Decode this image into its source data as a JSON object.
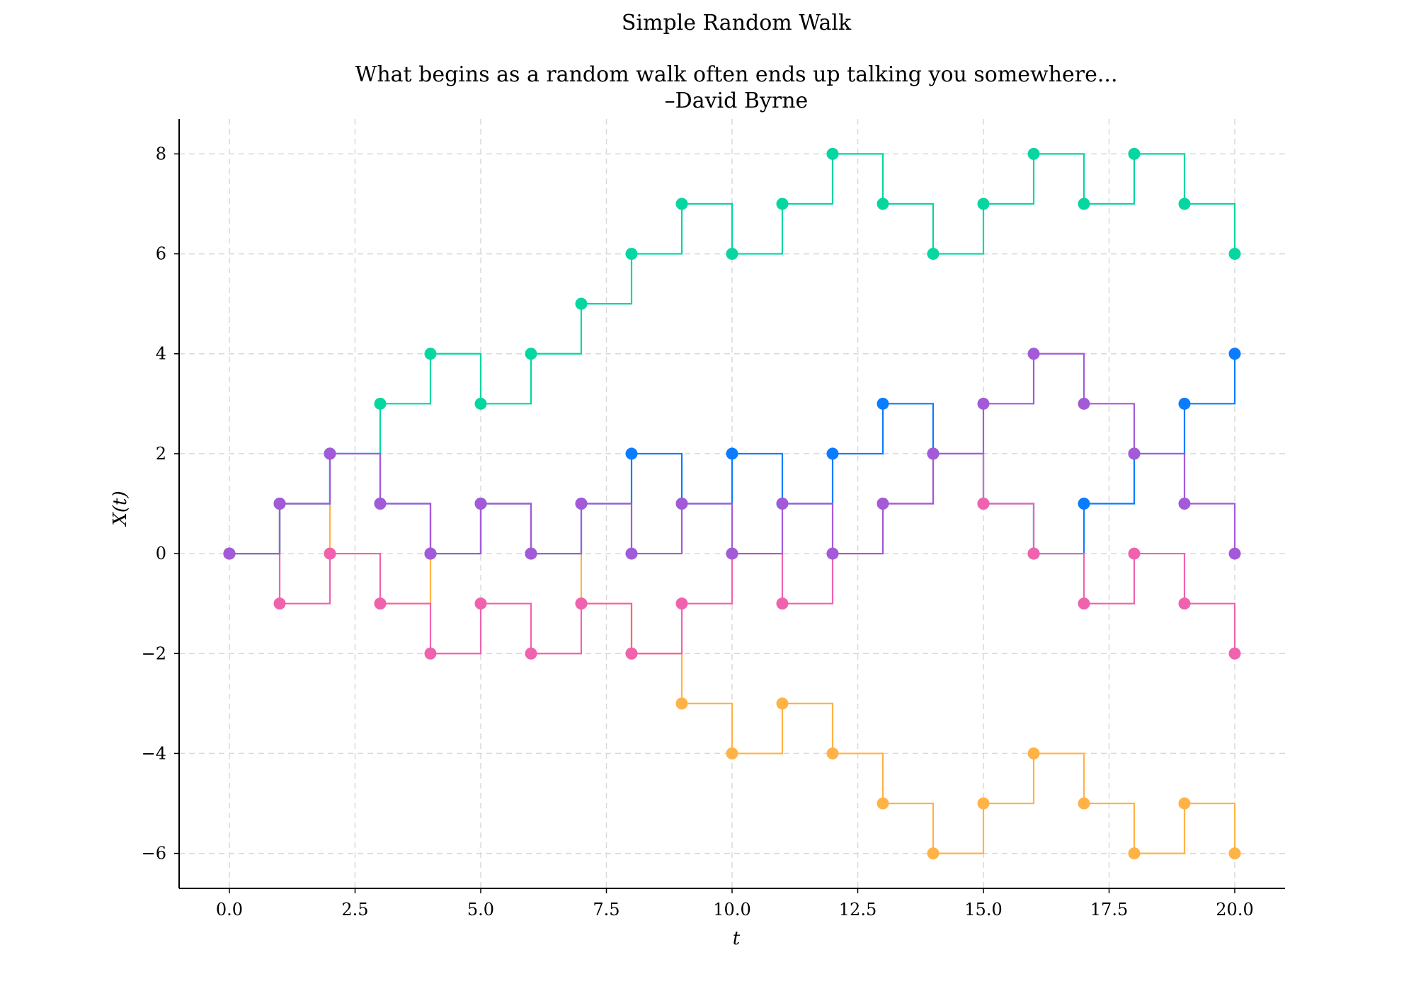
{
  "chart_data": {
    "type": "line",
    "step": "post",
    "markers": true,
    "title": "Simple Random Walk",
    "subtitle_lines": [
      "What begins as a random walk often ends up talking you somewhere...",
      "–David Byrne"
    ],
    "xlabel": "t",
    "ylabel": "X(t)",
    "xlim": [
      -1,
      21
    ],
    "ylim": [
      -6.7,
      8.7
    ],
    "xticks": [
      0,
      2.5,
      5,
      7.5,
      10,
      12.5,
      15,
      17.5,
      20
    ],
    "xtick_labels": [
      "0.0",
      "2.5",
      "5.0",
      "7.5",
      "10.0",
      "12.5",
      "15.0",
      "17.5",
      "20.0"
    ],
    "yticks": [
      -6,
      -4,
      -2,
      0,
      2,
      4,
      6,
      8
    ],
    "ytick_labels": [
      "−6",
      "−4",
      "−2",
      "0",
      "2",
      "4",
      "6",
      "8"
    ],
    "grid": true,
    "legend": "none",
    "x": [
      0,
      1,
      2,
      3,
      4,
      5,
      6,
      7,
      8,
      9,
      10,
      11,
      12,
      13,
      14,
      15,
      16,
      17,
      18,
      19,
      20
    ],
    "series": [
      {
        "color": "#06d6a0",
        "values": [
          0,
          1,
          2,
          3,
          4,
          3,
          4,
          5,
          6,
          7,
          6,
          7,
          8,
          7,
          6,
          7,
          8,
          7,
          8,
          7,
          6
        ]
      },
      {
        "color": "#ffb347",
        "values": [
          0,
          1,
          0,
          -1,
          0,
          1,
          0,
          -1,
          -2,
          -3,
          -4,
          -3,
          -4,
          -5,
          -6,
          -5,
          -4,
          -5,
          -6,
          -5,
          -6
        ]
      },
      {
        "color": "#0a7cff",
        "values": [
          0,
          1,
          2,
          1,
          0,
          1,
          0,
          1,
          2,
          1,
          2,
          1,
          2,
          3,
          2,
          1,
          0,
          1,
          2,
          3,
          4
        ]
      },
      {
        "color": "#f062ae",
        "values": [
          0,
          -1,
          0,
          -1,
          -2,
          -1,
          -2,
          -1,
          -2,
          -1,
          0,
          -1,
          0,
          1,
          2,
          1,
          0,
          -1,
          0,
          -1,
          -2
        ]
      },
      {
        "color": "#a35ad8",
        "values": [
          0,
          1,
          2,
          1,
          0,
          1,
          0,
          1,
          0,
          1,
          0,
          1,
          0,
          1,
          2,
          3,
          4,
          3,
          2,
          1,
          0
        ]
      }
    ]
  }
}
